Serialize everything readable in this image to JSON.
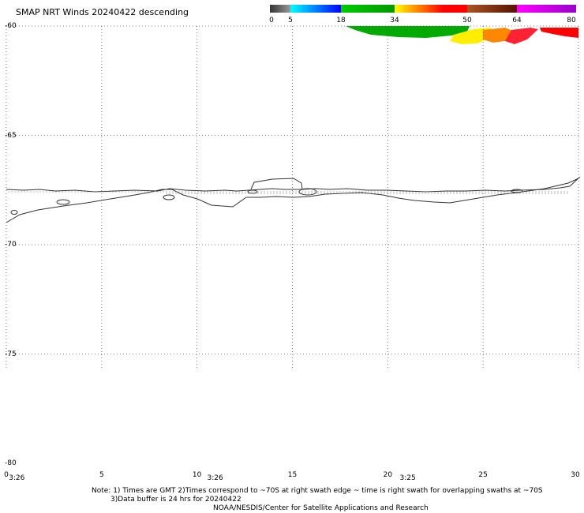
{
  "header": {
    "title": "SMAP NRT Winds  20240422 descending"
  },
  "colorbar": {
    "ticks": [
      "0",
      "5",
      "18",
      "34",
      "50",
      "64",
      "80"
    ],
    "tick_values": [
      0,
      5,
      18,
      34,
      50,
      64,
      80
    ],
    "segments": [
      {
        "from": 0,
        "to": 5,
        "colors": [
          "#333333",
          "#999999"
        ]
      },
      {
        "from": 5,
        "to": 18,
        "colors": [
          "#00ffff",
          "#0000ff"
        ]
      },
      {
        "from": 18,
        "to": 34,
        "colors": [
          "#00cc00",
          "#009900"
        ]
      },
      {
        "from": 34,
        "to": 50,
        "colors": [
          "#ffff00",
          "#ff8000",
          "#ff0000",
          "#ff0000"
        ]
      },
      {
        "from": 50,
        "to": 64,
        "colors": [
          "#aa5522",
          "#551100"
        ]
      },
      {
        "from": 64,
        "to": 80,
        "colors": [
          "#ff00ff",
          "#9900cc"
        ]
      }
    ]
  },
  "map": {
    "lat_labels": [
      {
        "value": -60,
        "text": "-60"
      },
      {
        "value": -65,
        "text": "-65"
      },
      {
        "value": -70,
        "text": "-70"
      },
      {
        "value": -75,
        "text": "-75"
      },
      {
        "value": -80,
        "text": "-80"
      }
    ],
    "lon_labels": [
      {
        "value": 0,
        "text": "0"
      },
      {
        "value": 5,
        "text": "5"
      },
      {
        "value": 10,
        "text": "10"
      },
      {
        "value": 15,
        "text": "15"
      },
      {
        "value": 20,
        "text": "20"
      },
      {
        "value": 25,
        "text": "25"
      },
      {
        "value": 30,
        "text": "30"
      }
    ],
    "time_labels": [
      {
        "lon": 0.3,
        "text": "3:26"
      },
      {
        "lon": 10.7,
        "text": "3:26"
      },
      {
        "lon": 20.8,
        "text": "3:25"
      }
    ],
    "lat_range": [
      -80,
      -60
    ],
    "lon_range": [
      0,
      30
    ],
    "grid": true,
    "swath_colors": {
      "green": "#00aa00",
      "yellow": "#ffee00",
      "orange": "#ff8800",
      "red": "#ff0000",
      "crimson": "#ff2233"
    }
  },
  "notes": {
    "line1": "Note: 1) Times are GMT 2)Times correspond to ~70S at right swath edge ~ time is right swath for overlapping swaths at ~70S",
    "line2": "3)Data buffer is 24 hrs for 20240422",
    "line3": "NOAA/NESDIS/Center for Satellite Applications and Research"
  }
}
